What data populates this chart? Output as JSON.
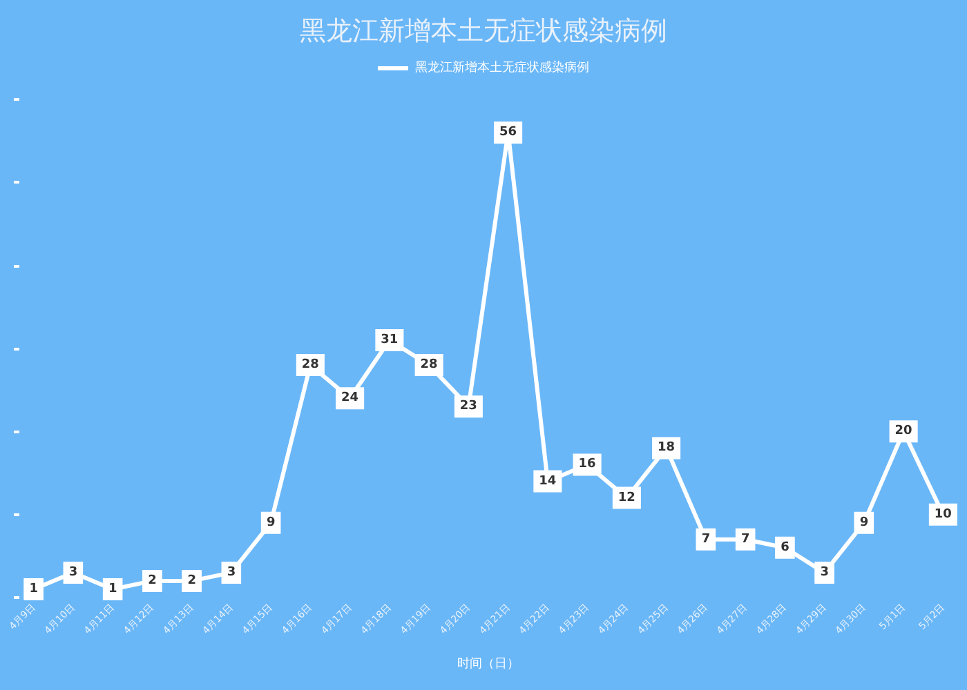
{
  "chart_data": {
    "type": "line",
    "title": "黑龙江新增本土无症状感染病例",
    "xlabel": "时间（日）",
    "categories": [
      "4月9日",
      "4月10日",
      "4月11日",
      "4月12日",
      "4月13日",
      "4月14日",
      "4月15日",
      "4月16日",
      "4月17日",
      "4月18日",
      "4月19日",
      "4月20日",
      "4月21日",
      "4月22日",
      "4月23日",
      "4月24日",
      "4月25日",
      "4月26日",
      "4月27日",
      "4月28日",
      "4月29日",
      "4月30日",
      "5月1日",
      "5月2日"
    ],
    "series": [
      {
        "name": "黑龙江新增本土无症状感染病例",
        "color": "#ffffff",
        "values": [
          1,
          3,
          1,
          2,
          2,
          3,
          9,
          28,
          24,
          31,
          28,
          23,
          56,
          14,
          16,
          12,
          18,
          7,
          7,
          6,
          3,
          9,
          20,
          10
        ]
      }
    ],
    "tick_labels": "x",
    "data_labels": true,
    "legend": "top",
    "marker": "square"
  }
}
